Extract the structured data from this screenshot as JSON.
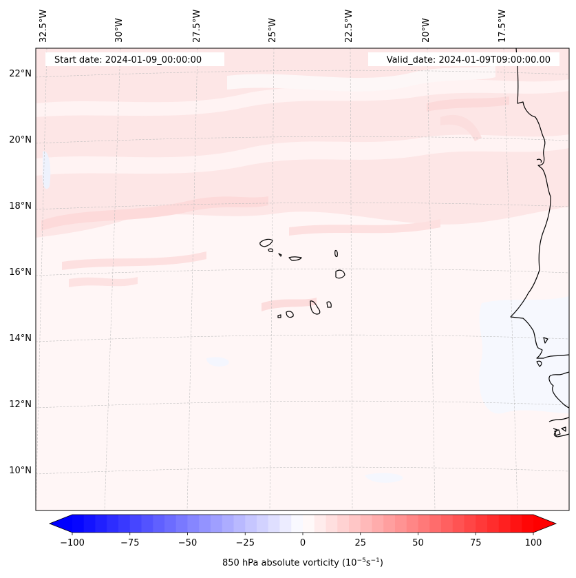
{
  "map": {
    "start_label": "Start date: 2024-01-09_00:00:00",
    "valid_label": "Valid_date: 2024-01-09T09:00:00.00",
    "lon_labels": [
      "32.5°W",
      "30°W",
      "27.5°W",
      "25°W",
      "22.5°W",
      "20°W",
      "17.5°W"
    ],
    "lat_labels": [
      "22°N",
      "20°N",
      "18°N",
      "16°N",
      "14°N",
      "12°N",
      "10°N"
    ],
    "gridlines": true
  },
  "colorbar": {
    "ticks": [
      "−100",
      "−75",
      "−50",
      "−25",
      "0",
      "25",
      "50",
      "75",
      "100"
    ],
    "label_main": "850 hPa absolute vorticity (10",
    "label_exp1": "−5",
    "label_mid": "s",
    "label_exp2": "−1",
    "label_end": ")",
    "min": -100,
    "max": 100,
    "levels": 40,
    "colormap": "bwr",
    "extend": "both"
  },
  "colors": {
    "land_outline": "#000000",
    "field_background": "#fff7f7"
  }
}
